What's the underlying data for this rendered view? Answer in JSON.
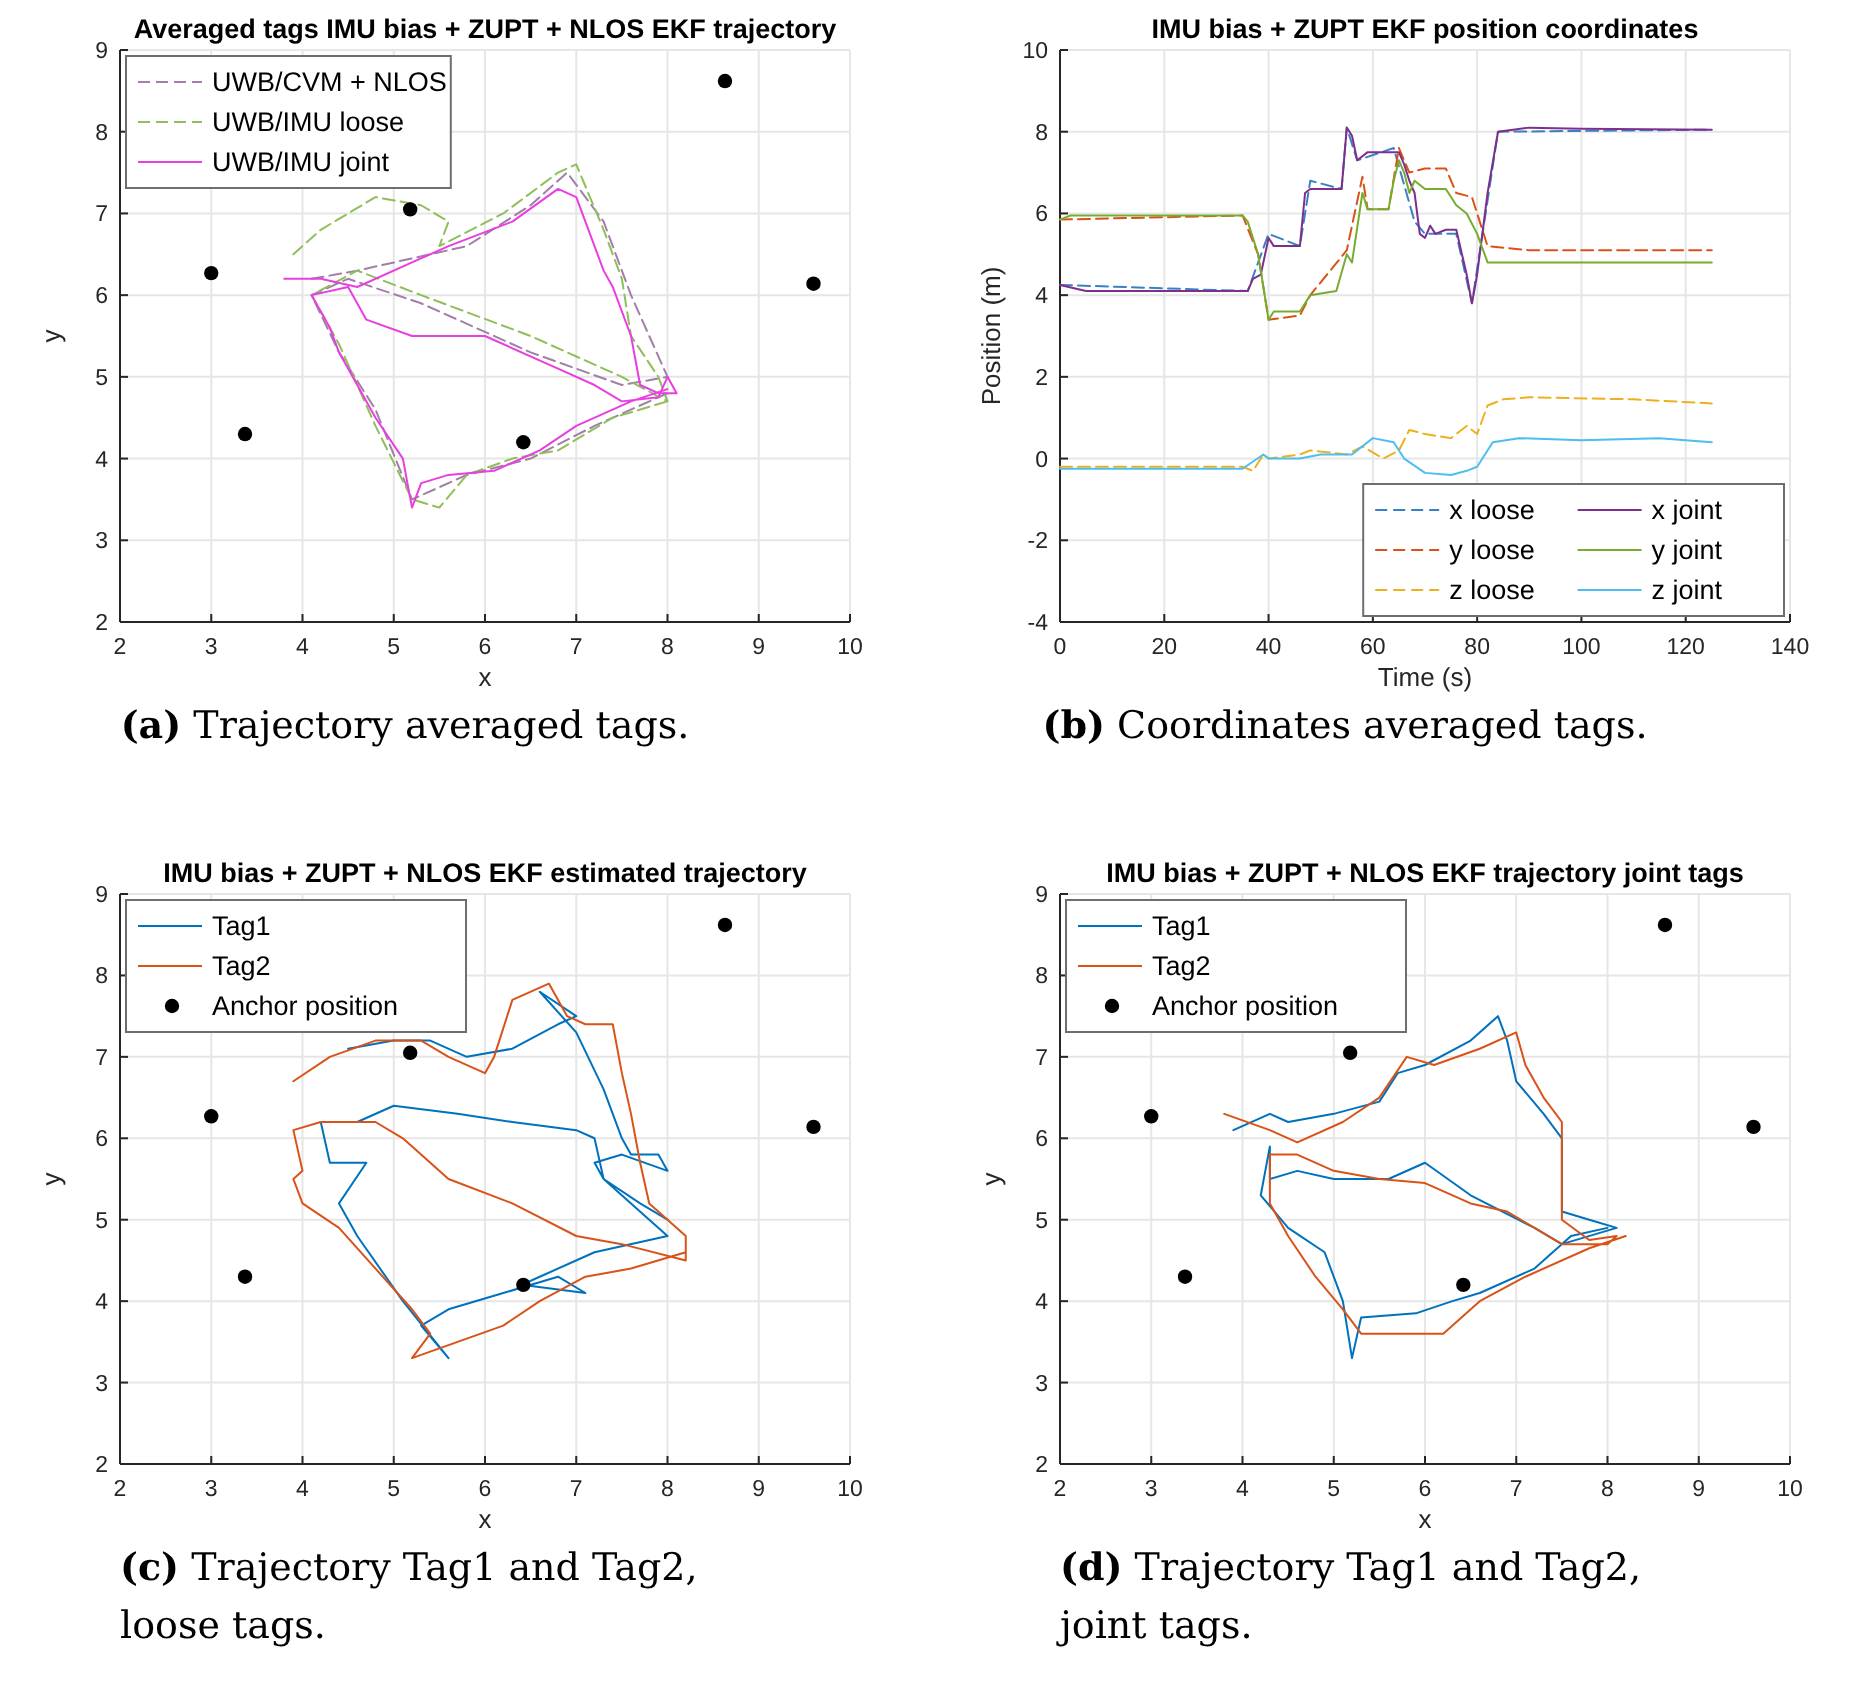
{
  "chart_data": [
    {
      "type": "line",
      "title": "Averaged tags IMU bias + ZUPT + NLOS EKF trajectory",
      "xlabel": "x",
      "ylabel": "y",
      "xlim": [
        2,
        10
      ],
      "ylim": [
        2,
        9
      ],
      "xticks": [
        2,
        3,
        4,
        5,
        6,
        7,
        8,
        9,
        10
      ],
      "yticks": [
        2,
        3,
        4,
        5,
        6,
        7,
        8,
        9
      ],
      "grid": true,
      "legend": "top left",
      "annotations": [
        "(a) Trajectory averaged tags."
      ],
      "series": [
        {
          "name": "UWB/CVM + NLOS",
          "color": "#a27ea8",
          "line_style": "dashed",
          "x": [
            4.1,
            4.6,
            5.8,
            6.5,
            6.9,
            7.3,
            7.6,
            8.0,
            7.5,
            6.5,
            5.3,
            4.5,
            4.1,
            4.4,
            4.8,
            5.2,
            5.8,
            6.5,
            7.2,
            8.0
          ],
          "values": [
            6.2,
            6.3,
            6.6,
            7.1,
            7.5,
            6.9,
            6.0,
            5.0,
            4.9,
            5.3,
            5.9,
            6.2,
            6.0,
            5.3,
            4.6,
            3.5,
            3.8,
            4.0,
            4.4,
            4.8
          ]
        },
        {
          "name": "UWB/IMU loose",
          "color": "#8fbf5a",
          "line_style": "dashed",
          "x": [
            3.9,
            4.2,
            4.8,
            5.3,
            5.6,
            5.5,
            6.2,
            6.8,
            7.0,
            7.3,
            7.5,
            7.6,
            7.9,
            8.0,
            7.5,
            6.5,
            5.3,
            4.6,
            4.1,
            4.4,
            4.8,
            5.2,
            5.5,
            5.8,
            6.3,
            6.8,
            7.4,
            8.0
          ],
          "values": [
            6.5,
            6.8,
            7.2,
            7.1,
            6.9,
            6.6,
            7.0,
            7.5,
            7.6,
            6.8,
            6.2,
            5.5,
            5.0,
            4.7,
            5.0,
            5.5,
            6.0,
            6.3,
            6.0,
            5.4,
            4.4,
            3.5,
            3.4,
            3.8,
            4.0,
            4.1,
            4.5,
            4.7
          ]
        },
        {
          "name": "UWB/IMU joint",
          "color": "#e83fe0",
          "line_style": "solid",
          "x": [
            3.8,
            4.2,
            4.6,
            5.2,
            5.6,
            6.3,
            6.8,
            7.0,
            7.3,
            7.4,
            7.6,
            7.7,
            7.9,
            8.1,
            8.0,
            7.9,
            7.5,
            7.2,
            6.8,
            6.0,
            5.2,
            4.7,
            4.5,
            4.1,
            4.3,
            4.4,
            4.8,
            5.1,
            5.2,
            5.3,
            5.6,
            6.1,
            6.6,
            7.0,
            7.6,
            8.0
          ],
          "values": [
            6.2,
            6.2,
            6.1,
            6.4,
            6.6,
            6.9,
            7.3,
            7.2,
            6.3,
            6.1,
            5.5,
            4.9,
            4.8,
            4.8,
            5.0,
            4.75,
            4.7,
            4.9,
            5.1,
            5.5,
            5.5,
            5.7,
            6.1,
            6.0,
            5.6,
            5.3,
            4.5,
            4.0,
            3.4,
            3.7,
            3.8,
            3.85,
            4.1,
            4.4,
            4.7,
            4.85
          ]
        },
        {
          "type": "scatter",
          "color": "#000000",
          "marker": "circle",
          "x": [
            3,
            3.37,
            5.18,
            6.42,
            8.63,
            9.6
          ],
          "values": [
            6.27,
            4.3,
            7.05,
            4.2,
            8.62,
            6.14
          ]
        }
      ]
    },
    {
      "type": "line",
      "title": "IMU bias + ZUPT EKF position coordinates",
      "xlabel": "Time (s)",
      "ylabel": "Position (m)",
      "xlim": [
        0,
        140
      ],
      "ylim": [
        -4,
        10
      ],
      "xticks": [
        0,
        20,
        40,
        60,
        80,
        100,
        120,
        140
      ],
      "yticks": [
        -4,
        -2,
        0,
        2,
        4,
        6,
        8,
        10
      ],
      "grid": true,
      "legend": "bottom right",
      "annotations": [
        "(b) Coordinates averaged tags."
      ],
      "series": [
        {
          "name": "x loose",
          "color": "#3b7fc4",
          "line_style": "dashed",
          "x": [
            0,
            36,
            40,
            46,
            48,
            54,
            55,
            57,
            64,
            68,
            70,
            76,
            79,
            84,
            125
          ],
          "values": [
            4.25,
            4.1,
            5.5,
            5.2,
            6.8,
            6.6,
            8.1,
            7.3,
            7.6,
            5.8,
            5.5,
            5.5,
            3.8,
            8.0,
            8.05
          ]
        },
        {
          "name": "y loose",
          "color": "#d95319",
          "line_style": "dashed",
          "x": [
            0,
            35,
            38,
            40,
            46,
            48,
            55,
            58,
            59,
            63,
            65,
            67,
            70,
            74,
            76,
            79,
            82,
            90,
            125
          ],
          "values": [
            5.85,
            5.95,
            5.0,
            3.4,
            3.5,
            4.0,
            5.1,
            6.9,
            6.1,
            6.1,
            7.6,
            7.0,
            7.1,
            7.1,
            6.5,
            6.4,
            5.2,
            5.1,
            5.1
          ]
        },
        {
          "name": "z loose",
          "color": "#edb120",
          "line_style": "dashed",
          "x": [
            0,
            35,
            37,
            39,
            40,
            46,
            48,
            55,
            58,
            62,
            65,
            67,
            70,
            75,
            78,
            80,
            82,
            85,
            90,
            110,
            125
          ],
          "values": [
            -0.2,
            -0.2,
            -0.3,
            0.1,
            0,
            0.1,
            0.2,
            0.1,
            0.3,
            0,
            0.2,
            0.7,
            0.6,
            0.5,
            0.8,
            0.6,
            1.3,
            1.45,
            1.5,
            1.45,
            1.35
          ]
        },
        {
          "name": "x joint",
          "color": "#7e2f8e",
          "line_style": "solid",
          "x": [
            0,
            5,
            36,
            37,
            38.5,
            40,
            41,
            46,
            47,
            48,
            54,
            55,
            56,
            57,
            58,
            59,
            65,
            66,
            67,
            68,
            69,
            70,
            71,
            72,
            74,
            76,
            78,
            79,
            80,
            82,
            84,
            90,
            100,
            125
          ],
          "values": [
            4.25,
            4.1,
            4.1,
            4.4,
            4.5,
            5.4,
            5.2,
            5.2,
            6.5,
            6.6,
            6.6,
            8.1,
            7.9,
            7.3,
            7.4,
            7.5,
            7.5,
            7.2,
            6.8,
            6.5,
            5.5,
            5.4,
            5.7,
            5.5,
            5.6,
            5.6,
            4.5,
            3.8,
            4.5,
            6.5,
            8.0,
            8.1,
            8.07,
            8.05
          ]
        },
        {
          "name": "y joint",
          "color": "#77ac30",
          "line_style": "solid",
          "x": [
            0,
            2,
            35,
            36,
            38,
            40,
            41,
            46,
            48,
            53,
            55,
            56,
            58,
            59,
            63,
            64,
            65,
            66,
            67,
            68,
            70,
            74,
            76,
            78,
            80,
            82,
            84,
            125
          ],
          "values": [
            5.85,
            5.95,
            5.95,
            5.8,
            5.0,
            3.4,
            3.6,
            3.6,
            4.0,
            4.1,
            5.0,
            4.8,
            6.5,
            6.1,
            6.1,
            6.8,
            7.3,
            7.0,
            6.5,
            6.8,
            6.6,
            6.6,
            6.2,
            6.0,
            5.5,
            4.8,
            4.8,
            4.8
          ]
        },
        {
          "name": "z joint",
          "color": "#4dbeee",
          "line_style": "solid",
          "x": [
            0,
            35,
            39,
            40,
            46,
            50,
            56,
            60,
            64,
            66,
            70,
            75,
            78,
            80,
            83,
            88,
            100,
            115,
            125
          ],
          "values": [
            -0.25,
            -0.25,
            0.1,
            0,
            0,
            0.1,
            0.1,
            0.5,
            0.4,
            0,
            -0.35,
            -0.4,
            -0.3,
            -0.2,
            0.4,
            0.5,
            0.45,
            0.5,
            0.4
          ]
        }
      ]
    },
    {
      "type": "line",
      "title": "IMU bias + ZUPT + NLOS EKF estimated trajectory",
      "xlabel": "x",
      "ylabel": "y",
      "xlim": [
        2,
        10
      ],
      "ylim": [
        2,
        9
      ],
      "xticks": [
        2,
        3,
        4,
        5,
        6,
        7,
        8,
        9,
        10
      ],
      "yticks": [
        2,
        3,
        4,
        5,
        6,
        7,
        8,
        9
      ],
      "grid": true,
      "legend": "top left",
      "annotations": [
        "(c) Trajectory Tag1 and Tag2, loose tags."
      ],
      "series": [
        {
          "name": "Tag1",
          "color": "#0072bd",
          "line_style": "solid",
          "x": [
            4.5,
            5.0,
            5.4,
            5.8,
            6.3,
            6.8,
            7.0,
            6.6,
            7.0,
            7.3,
            7.5,
            7.6,
            7.9,
            8.0,
            7.5,
            7.2,
            7.3,
            7.6,
            8.0,
            7.2,
            6.6,
            6.4,
            7.1,
            6.8,
            6.2,
            5.6,
            5.3,
            5.6,
            5.1,
            4.6,
            4.4,
            4.7,
            4.3,
            4.2,
            4.6,
            5.0,
            5.7,
            6.3,
            7.0,
            7.2,
            7.3,
            7.7,
            8.0
          ],
          "values": [
            7.1,
            7.2,
            7.2,
            7.0,
            7.1,
            7.4,
            7.5,
            7.8,
            7.3,
            6.6,
            6.0,
            5.8,
            5.8,
            5.6,
            5.8,
            5.7,
            5.5,
            5.2,
            4.8,
            4.6,
            4.3,
            4.2,
            4.1,
            4.3,
            4.1,
            3.9,
            3.7,
            3.3,
            4.0,
            4.8,
            5.2,
            5.7,
            5.7,
            6.2,
            6.2,
            6.4,
            6.3,
            6.2,
            6.1,
            6.0,
            5.5,
            5.2,
            5.0
          ]
        },
        {
          "name": "Tag2",
          "color": "#d95319",
          "line_style": "solid",
          "x": [
            3.9,
            4.3,
            4.8,
            5.3,
            5.6,
            6.0,
            6.1,
            6.3,
            6.7,
            6.9,
            7.1,
            7.4,
            7.5,
            7.6,
            7.7,
            7.8,
            8.2,
            8.2,
            7.5,
            7.0,
            6.3,
            5.6,
            5.1,
            4.8,
            4.2,
            3.9,
            4.0,
            3.9,
            4.0,
            4.4,
            4.8,
            5.2,
            5.4,
            5.2,
            5.7,
            6.2,
            6.6,
            7.1,
            7.6,
            8.2
          ],
          "values": [
            6.7,
            7.0,
            7.2,
            7.2,
            7.0,
            6.8,
            7.0,
            7.7,
            7.9,
            7.5,
            7.4,
            7.4,
            6.8,
            6.3,
            5.7,
            5.2,
            4.8,
            4.5,
            4.7,
            4.8,
            5.2,
            5.5,
            6.0,
            6.2,
            6.2,
            6.1,
            5.6,
            5.5,
            5.2,
            4.9,
            4.4,
            3.9,
            3.6,
            3.3,
            3.5,
            3.7,
            4.0,
            4.3,
            4.4,
            4.6
          ]
        },
        {
          "name": "Anchor position",
          "type": "scatter",
          "color": "#000000",
          "marker": "circle",
          "x": [
            3,
            3.37,
            5.18,
            6.42,
            8.63,
            9.6
          ],
          "values": [
            6.27,
            4.3,
            7.05,
            4.2,
            8.62,
            6.14
          ]
        }
      ]
    },
    {
      "type": "line",
      "title": "IMU bias + ZUPT + NLOS EKF trajectory joint tags",
      "xlabel": "x",
      "ylabel": "y",
      "xlim": [
        2,
        10
      ],
      "ylim": [
        2,
        9
      ],
      "xticks": [
        2,
        3,
        4,
        5,
        6,
        7,
        8,
        9,
        10
      ],
      "yticks": [
        2,
        3,
        4,
        5,
        6,
        7,
        8,
        9
      ],
      "grid": true,
      "legend": "top left",
      "annotations": [
        "(d) Trajectory Tag1 and Tag2, joint tags."
      ],
      "series": [
        {
          "name": "Tag1",
          "color": "#0072bd",
          "line_style": "solid",
          "x": [
            3.9,
            4.3,
            4.5,
            5.0,
            5.5,
            5.7,
            6.0,
            6.5,
            6.8,
            6.9,
            7.0,
            7.3,
            7.5,
            7.5,
            7.8,
            8.1,
            7.5,
            7.2,
            6.5,
            6.0,
            5.6,
            5.0,
            4.6,
            4.3,
            4.3,
            4.2,
            4.5,
            4.9,
            5.1,
            5.2,
            5.3,
            5.9,
            6.3,
            6.6,
            7.2,
            7.6,
            8.0
          ],
          "values": [
            6.1,
            6.3,
            6.2,
            6.3,
            6.45,
            6.8,
            6.9,
            7.2,
            7.5,
            7.2,
            6.7,
            6.3,
            6.0,
            5.1,
            5.0,
            4.9,
            4.7,
            4.9,
            5.3,
            5.7,
            5.5,
            5.5,
            5.6,
            5.5,
            5.9,
            5.3,
            4.9,
            4.6,
            4.0,
            3.3,
            3.8,
            3.85,
            4.0,
            4.1,
            4.4,
            4.8,
            4.9
          ]
        },
        {
          "name": "Tag2",
          "color": "#d95319",
          "line_style": "solid",
          "x": [
            3.8,
            4.3,
            4.6,
            5.1,
            5.5,
            5.8,
            6.1,
            6.6,
            7.0,
            7.1,
            7.3,
            7.5,
            7.5,
            7.8,
            8.1,
            8.0,
            7.5,
            6.9,
            6.5,
            6.0,
            5.5,
            5.0,
            4.6,
            4.3,
            4.3,
            4.3,
            4.5,
            4.8,
            5.1,
            5.3,
            5.7,
            6.2,
            6.6,
            7.1,
            7.8,
            8.2
          ],
          "values": [
            6.3,
            6.1,
            5.95,
            6.2,
            6.5,
            7.0,
            6.9,
            7.1,
            7.3,
            6.9,
            6.5,
            6.2,
            5.0,
            4.75,
            4.8,
            4.7,
            4.7,
            5.1,
            5.2,
            5.45,
            5.5,
            5.6,
            5.8,
            5.8,
            5.5,
            5.2,
            4.8,
            4.3,
            3.9,
            3.6,
            3.6,
            3.6,
            4.0,
            4.3,
            4.65,
            4.8
          ]
        },
        {
          "name": "Anchor position",
          "type": "scatter",
          "color": "#000000",
          "marker": "circle",
          "x": [
            3,
            3.37,
            5.18,
            6.42,
            8.63,
            9.6
          ],
          "values": [
            6.27,
            4.3,
            7.05,
            4.2,
            8.62,
            6.14
          ]
        }
      ]
    }
  ]
}
